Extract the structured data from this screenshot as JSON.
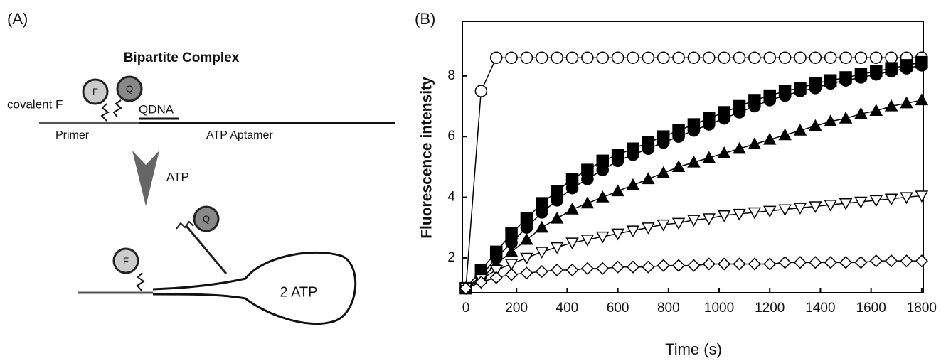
{
  "panel_a": {
    "label": "(A)",
    "title": "Bipartite Complex",
    "covalent": "covalent F",
    "f_top": "F",
    "q_top": "Q",
    "qdna": "QDNA",
    "primer": "Primer",
    "aptamer": "ATP Aptamer",
    "atp": "ATP",
    "q_bottom": "Q",
    "f_bottom": "F",
    "atp_bound": "2 ATP"
  },
  "chart_data": {
    "type": "line",
    "panel_label": "(B)",
    "x_label": "Time (s)",
    "y_label": "Fluorescence intensity",
    "x": [
      0,
      60,
      120,
      180,
      240,
      300,
      360,
      420,
      480,
      540,
      600,
      660,
      720,
      780,
      840,
      900,
      960,
      1020,
      1080,
      1140,
      1200,
      1260,
      1320,
      1380,
      1440,
      1500,
      1560,
      1620,
      1680,
      1740,
      1800
    ],
    "series": [
      {
        "color": "#000000",
        "marker": "circle",
        "filled": false,
        "values": [
          1.0,
          7.5,
          8.6,
          8.6,
          8.6,
          8.6,
          8.6,
          8.6,
          8.6,
          8.6,
          8.6,
          8.6,
          8.6,
          8.6,
          8.6,
          8.6,
          8.6,
          8.6,
          8.6,
          8.6,
          8.6,
          8.6,
          8.6,
          8.6,
          8.6,
          8.6,
          8.6,
          8.6,
          8.6,
          8.6,
          8.6
        ]
      },
      {
        "color": "#000000",
        "marker": "square",
        "filled": true,
        "values": [
          1.0,
          1.6,
          2.2,
          2.8,
          3.3,
          3.8,
          4.2,
          4.6,
          4.9,
          5.2,
          5.4,
          5.6,
          5.8,
          6.0,
          6.2,
          6.4,
          6.6,
          6.8,
          7.0,
          7.2,
          7.35,
          7.5,
          7.6,
          7.75,
          7.85,
          7.95,
          8.05,
          8.15,
          8.25,
          8.35,
          8.45
        ]
      },
      {
        "color": "#000000",
        "marker": "circle",
        "filled": true,
        "values": [
          1.0,
          1.4,
          2.0,
          2.5,
          3.0,
          3.5,
          3.9,
          4.3,
          4.6,
          4.9,
          5.2,
          5.4,
          5.6,
          5.8,
          6.0,
          6.2,
          6.4,
          6.6,
          6.8,
          7.0,
          7.2,
          7.35,
          7.5,
          7.6,
          7.75,
          7.85,
          7.95,
          8.05,
          8.15,
          8.25,
          8.35
        ]
      },
      {
        "color": "#000000",
        "marker": "triangle",
        "filled": true,
        "values": [
          1.0,
          1.3,
          1.8,
          2.2,
          2.6,
          3.0,
          3.3,
          3.6,
          3.8,
          4.0,
          4.2,
          4.4,
          4.6,
          4.8,
          5.0,
          5.15,
          5.3,
          5.45,
          5.6,
          5.75,
          5.9,
          6.05,
          6.2,
          6.35,
          6.5,
          6.6,
          6.75,
          6.85,
          7.0,
          7.1,
          7.2
        ]
      },
      {
        "color": "#000000",
        "marker": "triangle-down",
        "filled": false,
        "values": [
          1.0,
          1.3,
          1.6,
          1.8,
          2.0,
          2.2,
          2.35,
          2.5,
          2.6,
          2.7,
          2.8,
          2.9,
          3.0,
          3.1,
          3.15,
          3.25,
          3.3,
          3.4,
          3.45,
          3.5,
          3.55,
          3.6,
          3.65,
          3.7,
          3.75,
          3.8,
          3.85,
          3.9,
          3.95,
          4.0,
          4.05
        ]
      },
      {
        "color": "#000000",
        "marker": "diamond",
        "filled": false,
        "values": [
          1.0,
          1.2,
          1.35,
          1.45,
          1.5,
          1.55,
          1.6,
          1.6,
          1.65,
          1.65,
          1.7,
          1.7,
          1.7,
          1.75,
          1.75,
          1.75,
          1.8,
          1.8,
          1.8,
          1.8,
          1.8,
          1.85,
          1.85,
          1.85,
          1.85,
          1.85,
          1.85,
          1.9,
          1.9,
          1.9,
          1.9
        ]
      }
    ],
    "xlim": [
      -14,
      1806
    ],
    "ylim": [
      0.85,
      9.8
    ],
    "xticks": [
      0,
      200,
      400,
      600,
      800,
      1000,
      1200,
      1400,
      1600,
      1800
    ],
    "yticks": [
      2,
      4,
      6,
      8
    ],
    "grid": false
  }
}
